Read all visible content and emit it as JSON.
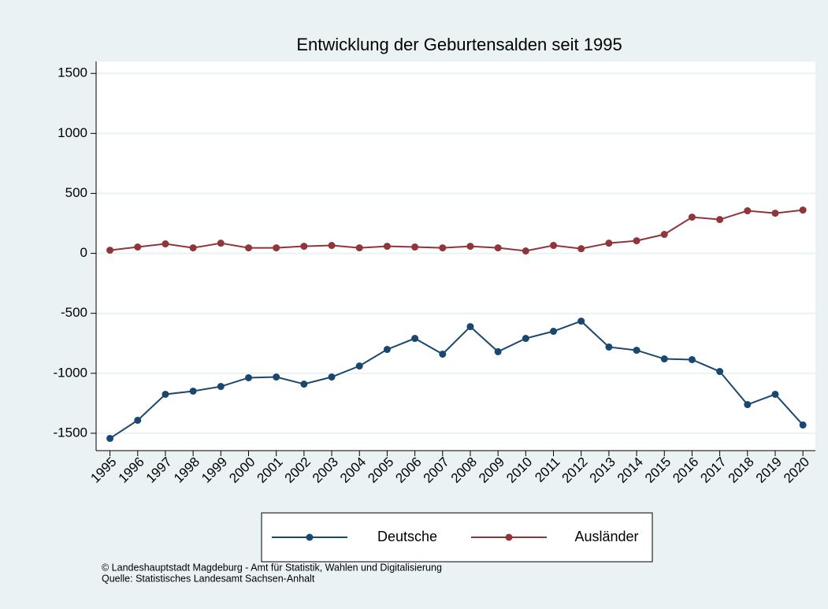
{
  "chart_data": {
    "type": "line",
    "title": "Entwicklung der Geburtensalden seit 1995",
    "x": [
      1995,
      1996,
      1997,
      1998,
      1999,
      2000,
      2001,
      2002,
      2003,
      2004,
      2005,
      2006,
      2007,
      2008,
      2009,
      2010,
      2011,
      2012,
      2013,
      2014,
      2015,
      2016,
      2017,
      2018,
      2019,
      2020
    ],
    "series": [
      {
        "name": "Deutsche",
        "color": "#1a476f",
        "values": [
          -1543,
          -1392,
          -1175,
          -1149,
          -1110,
          -1037,
          -1031,
          -1090,
          -1031,
          -939,
          -801,
          -709,
          -840,
          -611,
          -820,
          -709,
          -650,
          -565,
          -781,
          -808,
          -880,
          -886,
          -985,
          -1261,
          -1175,
          -1431
        ]
      },
      {
        "name": "Ausländer",
        "color": "#90353b",
        "values": [
          26,
          53,
          79,
          46,
          85,
          46,
          46,
          59,
          66,
          46,
          59,
          53,
          46,
          59,
          46,
          20,
          66,
          39,
          85,
          105,
          158,
          302,
          282,
          355,
          335,
          361
        ]
      }
    ],
    "xlim": [
      1994.5,
      2020.45
    ],
    "xticks": [
      1995,
      1996,
      1997,
      1998,
      1999,
      2000,
      2001,
      2002,
      2003,
      2004,
      2005,
      2006,
      2007,
      2008,
      2009,
      2010,
      2011,
      2012,
      2013,
      2014,
      2015,
      2016,
      2017,
      2018,
      2019,
      2020
    ],
    "ylim": [
      -1645,
      1600
    ],
    "yticks": [
      -1500,
      -1000,
      -500,
      0,
      500,
      1000,
      1500
    ],
    "grid": true,
    "legend": "bottom",
    "notes": [
      "© Landeshauptstadt Magdeburg - Amt für Statistik, Wahlen und Digitalisierung",
      "Quelle: Statistisches Landesamt Sachsen-Anhalt"
    ]
  }
}
